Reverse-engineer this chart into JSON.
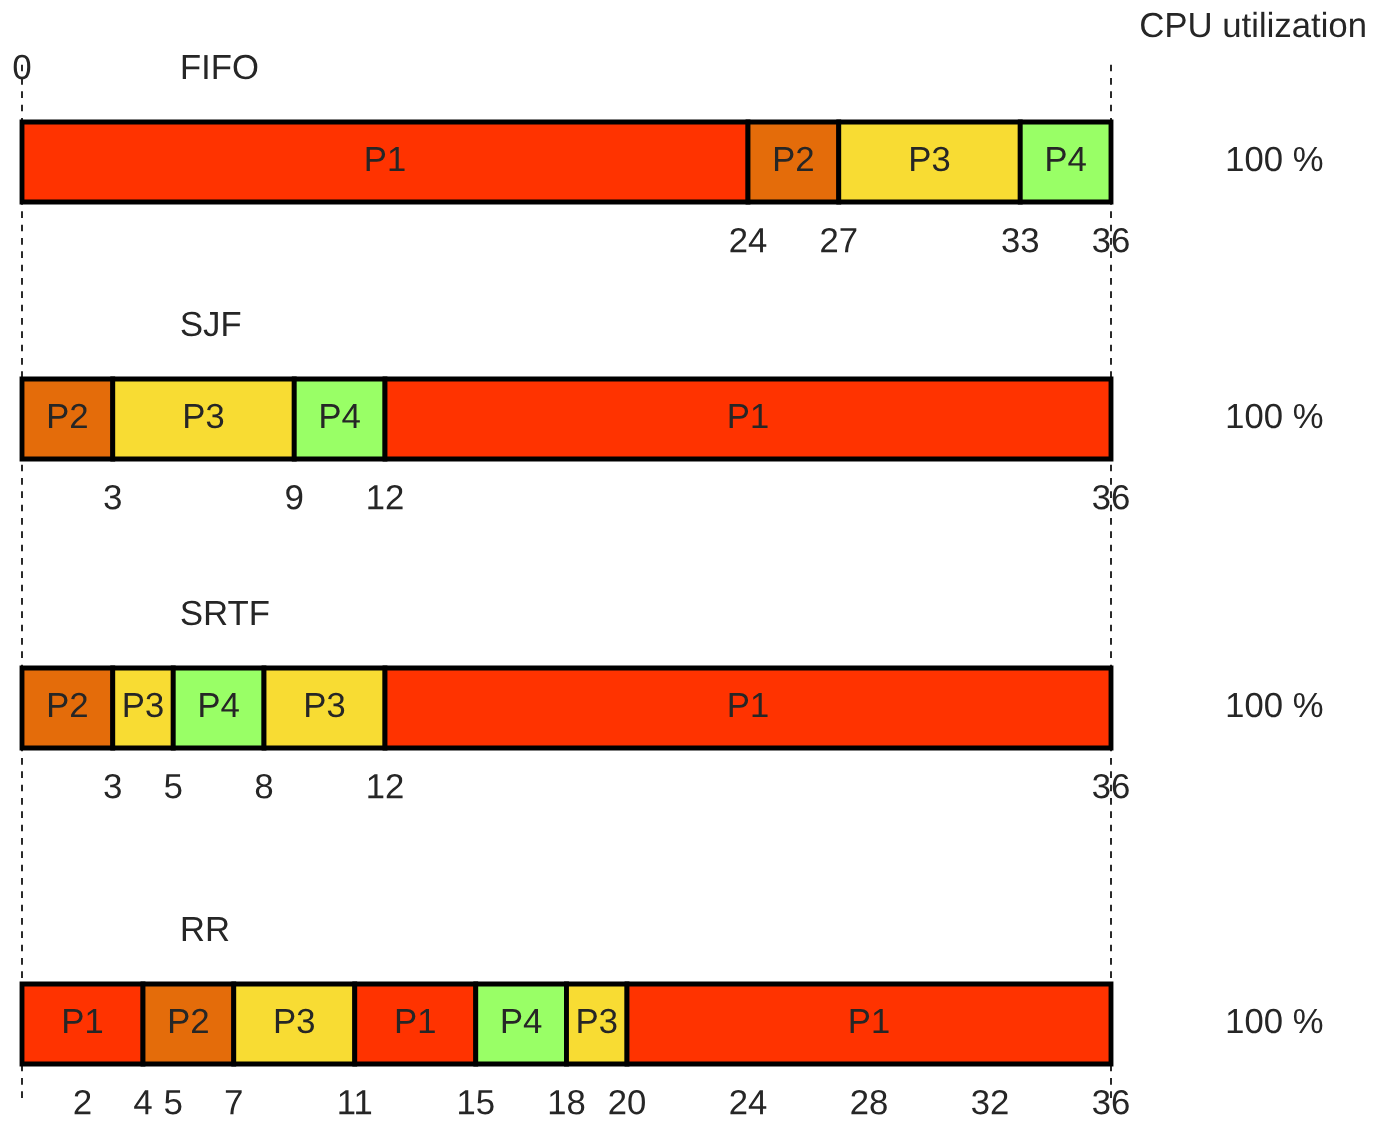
{
  "chart_data": [
    {
      "type": "bar",
      "orientation": "horizontal",
      "stacked": true,
      "title": "FIFO",
      "categories": [
        null
      ],
      "series": [
        {
          "name": "P1",
          "color": "#ff3300",
          "values": [
            24
          ]
        },
        {
          "name": "P2",
          "color": "#e46c0a",
          "values": [
            3
          ]
        },
        {
          "name": "P3",
          "color": "#f8dc33",
          "values": [
            6
          ]
        },
        {
          "name": "P4",
          "color": "#99ff66",
          "values": [
            3
          ]
        }
      ],
      "xlim": [
        0,
        36
      ],
      "xticks": [
        24,
        27,
        33,
        36
      ],
      "ref_lines": [
        {
          "axis": "x",
          "value": 0,
          "line_style": "dashed"
        },
        {
          "axis": "x",
          "value": 36,
          "line_style": "dashed"
        }
      ],
      "annotations": [
        "100 %",
        "0",
        "CPU utilization"
      ]
    },
    {
      "type": "bar",
      "orientation": "horizontal",
      "stacked": true,
      "title": "SJF",
      "categories": [
        null
      ],
      "series": [
        {
          "name": "P2",
          "color": "#e46c0a",
          "values": [
            3
          ]
        },
        {
          "name": "P3",
          "color": "#f8dc33",
          "values": [
            6
          ]
        },
        {
          "name": "P4",
          "color": "#99ff66",
          "values": [
            3
          ]
        },
        {
          "name": "P1",
          "color": "#ff3300",
          "values": [
            24
          ]
        }
      ],
      "xlim": [
        0,
        36
      ],
      "xticks": [
        3,
        9,
        12,
        36
      ],
      "annotations": [
        "100 %"
      ]
    },
    {
      "type": "bar",
      "orientation": "horizontal",
      "stacked": true,
      "title": "SRTF",
      "categories": [
        null
      ],
      "series": [
        {
          "name": "P2",
          "color": "#e46c0a",
          "values": [
            3
          ]
        },
        {
          "name": "P3",
          "color": "#f8dc33",
          "values": [
            2
          ]
        },
        {
          "name": "P4",
          "color": "#99ff66",
          "values": [
            3
          ]
        },
        {
          "name": "P3",
          "color": "#f8dc33",
          "values": [
            4
          ]
        },
        {
          "name": "P1",
          "color": "#ff3300",
          "values": [
            24
          ]
        }
      ],
      "xlim": [
        0,
        36
      ],
      "xticks": [
        3,
        5,
        8,
        12,
        36
      ],
      "annotations": [
        "100 %"
      ]
    },
    {
      "type": "bar",
      "orientation": "horizontal",
      "stacked": true,
      "title": "RR",
      "categories": [
        null
      ],
      "series": [
        {
          "name": "P1",
          "color": "#ff3300",
          "values": [
            4
          ]
        },
        {
          "name": "P2",
          "color": "#e46c0a",
          "values": [
            3
          ]
        },
        {
          "name": "P3",
          "color": "#f8dc33",
          "values": [
            4
          ]
        },
        {
          "name": "P1",
          "color": "#ff3300",
          "values": [
            4
          ]
        },
        {
          "name": "P4",
          "color": "#99ff66",
          "values": [
            3
          ]
        },
        {
          "name": "P3",
          "color": "#f8dc33",
          "values": [
            2
          ]
        },
        {
          "name": "P1",
          "color": "#ff3300",
          "values": [
            16
          ]
        }
      ],
      "xlim": [
        0,
        36
      ],
      "xticks": [
        2,
        4,
        5,
        7,
        11,
        15,
        18,
        20,
        24,
        28,
        32,
        36
      ],
      "annotations": [
        "100 %"
      ]
    }
  ]
}
